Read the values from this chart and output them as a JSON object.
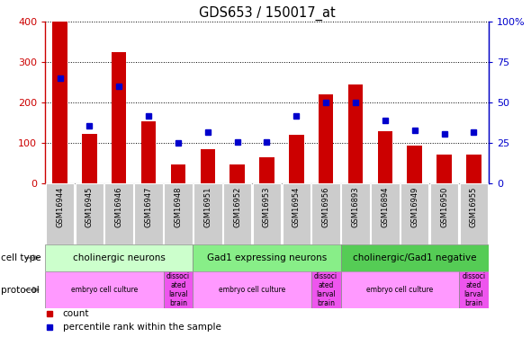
{
  "title": "GDS653 / 150017_at",
  "samples": [
    "GSM16944",
    "GSM16945",
    "GSM16946",
    "GSM16947",
    "GSM16948",
    "GSM16951",
    "GSM16952",
    "GSM16953",
    "GSM16954",
    "GSM16956",
    "GSM16893",
    "GSM16894",
    "GSM16949",
    "GSM16950",
    "GSM16955"
  ],
  "counts": [
    400,
    122,
    325,
    155,
    48,
    85,
    48,
    65,
    120,
    220,
    245,
    130,
    95,
    72,
    72
  ],
  "percentile": [
    65,
    36,
    60,
    42,
    25,
    32,
    26,
    26,
    42,
    50,
    50,
    39,
    33,
    31,
    32
  ],
  "ylim_left": [
    0,
    400
  ],
  "ylim_right": [
    0,
    100
  ],
  "yticks_left": [
    0,
    100,
    200,
    300,
    400
  ],
  "yticks_right": [
    0,
    25,
    50,
    75,
    100
  ],
  "ytick_labels_right": [
    "0",
    "25",
    "50",
    "75",
    "100%"
  ],
  "bar_color": "#cc0000",
  "dot_color": "#0000cc",
  "cell_type_groups": [
    {
      "label": "cholinergic neurons",
      "start": 0,
      "end": 4,
      "color": "#ccffcc"
    },
    {
      "label": "Gad1 expressing neurons",
      "start": 5,
      "end": 9,
      "color": "#88ee88"
    },
    {
      "label": "cholinergic/Gad1 negative",
      "start": 10,
      "end": 14,
      "color": "#55cc55"
    }
  ],
  "protocol_groups": [
    {
      "label": "embryo cell culture",
      "start": 0,
      "end": 3,
      "color": "#ff99ff"
    },
    {
      "label": "dissoci\nated\nlarval\nbrain",
      "start": 4,
      "end": 4,
      "color": "#ee55ee"
    },
    {
      "label": "embryo cell culture",
      "start": 5,
      "end": 8,
      "color": "#ff99ff"
    },
    {
      "label": "dissoci\nated\nlarval\nbrain",
      "start": 9,
      "end": 9,
      "color": "#ee55ee"
    },
    {
      "label": "embryo cell culture",
      "start": 10,
      "end": 13,
      "color": "#ff99ff"
    },
    {
      "label": "dissoci\nated\nlarval\nbrain",
      "start": 14,
      "end": 14,
      "color": "#ee55ee"
    }
  ],
  "left_axis_color": "#cc0000",
  "right_axis_color": "#0000cc",
  "tick_bg_color": "#cccccc"
}
